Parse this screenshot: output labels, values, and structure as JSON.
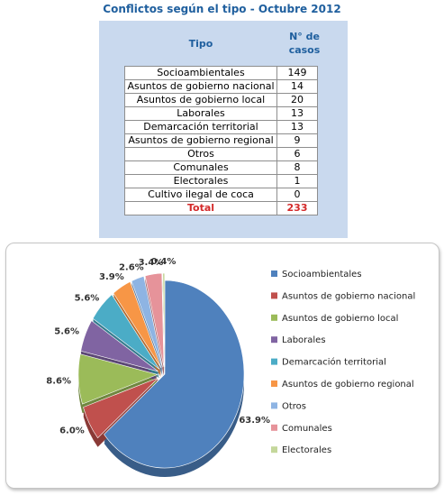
{
  "title": "Conflictos según el tipo - Octubre 2012",
  "table": {
    "header_tipo": "Tipo",
    "header_casos_line1": "N° de",
    "header_casos_line2": "casos",
    "rows": [
      {
        "tipo": "Socioambientales",
        "casos": "149"
      },
      {
        "tipo": "Asuntos de gobierno nacional",
        "casos": "14"
      },
      {
        "tipo": "Asuntos de gobierno local",
        "casos": "20"
      },
      {
        "tipo": "Laborales",
        "casos": "13"
      },
      {
        "tipo": "Demarcación territorial",
        "casos": "13"
      },
      {
        "tipo": "Asuntos de gobierno regional",
        "casos": "9"
      },
      {
        "tipo": "Otros",
        "casos": "6"
      },
      {
        "tipo": "Comunales",
        "casos": "8"
      },
      {
        "tipo": "Electorales",
        "casos": "1"
      },
      {
        "tipo": "Cultivo ilegal de coca",
        "casos": "0"
      }
    ],
    "total_label": "Total",
    "total_value": "233"
  },
  "chart_data": {
    "type": "pie",
    "categories": [
      "Socioambientales",
      "Asuntos de gobierno nacional",
      "Asuntos de gobierno local",
      "Laborales",
      "Demarcación territorial",
      "Asuntos de gobierno regional",
      "Otros",
      "Comunales",
      "Electorales"
    ],
    "values": [
      63.9,
      6.0,
      8.6,
      5.6,
      5.6,
      3.9,
      2.6,
      3.4,
      0.4
    ],
    "labels": [
      "63.9%",
      "6.0%",
      "8.6%",
      "5.6%",
      "5.6%",
      "3.9%",
      "2.6%",
      "3.4%",
      "0.4%"
    ],
    "colors": [
      "#4f81bd",
      "#c0504d",
      "#9bbb59",
      "#8064a2",
      "#4bacc6",
      "#f79646",
      "#8eb4e3",
      "#e6939a",
      "#c4d79b"
    ],
    "legend_position": "right",
    "exploded": true
  }
}
